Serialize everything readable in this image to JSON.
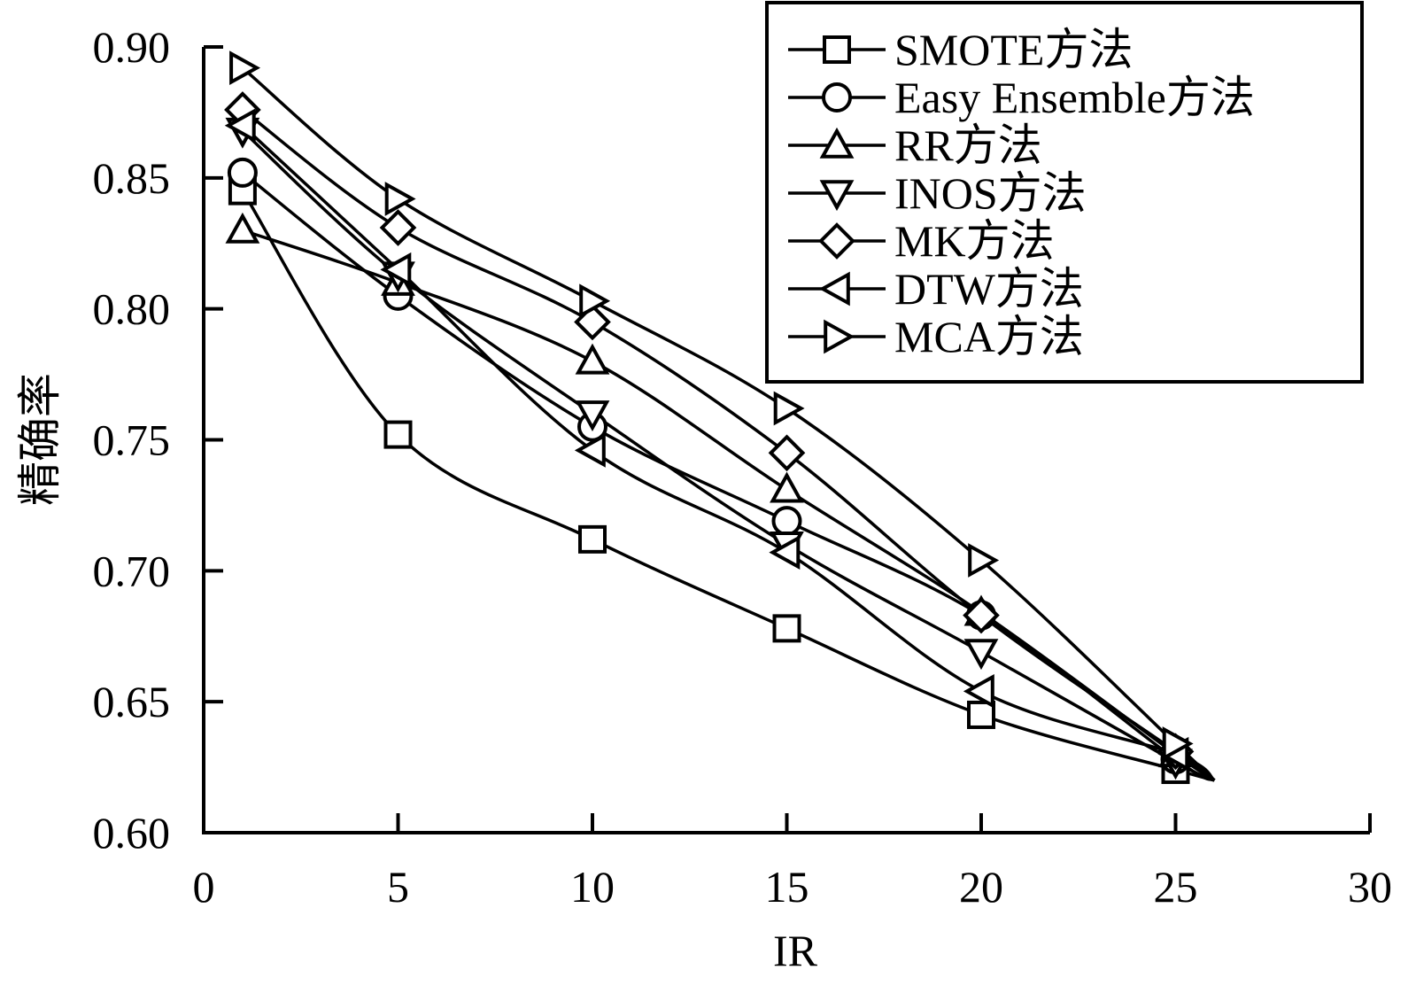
{
  "chart_data": {
    "type": "line",
    "title": "",
    "xlabel": "IR",
    "ylabel": "精确率",
    "xlim": [
      0,
      30
    ],
    "ylim": [
      0.6,
      0.9
    ],
    "xticks": [
      "0",
      "5",
      "10",
      "15",
      "20",
      "25",
      "30"
    ],
    "yticks": [
      "0.60",
      "0.65",
      "0.70",
      "0.75",
      "0.80",
      "0.85",
      "0.90"
    ],
    "grid": false,
    "legend_position": "top-right",
    "curve_end": {
      "x": 26.0,
      "y": 0.62
    },
    "series": [
      {
        "name": "SMOTE方法",
        "marker": "square",
        "x": [
          1,
          5,
          10,
          15,
          20,
          25
        ],
        "y": [
          0.845,
          0.752,
          0.712,
          0.678,
          0.645,
          0.624
        ]
      },
      {
        "name": "Easy Ensemble方法",
        "marker": "circle",
        "x": [
          1,
          5,
          10,
          15,
          20,
          25
        ],
        "y": [
          0.852,
          0.805,
          0.755,
          0.719,
          0.683,
          0.628
        ]
      },
      {
        "name": "RR方法",
        "marker": "triangle-up",
        "x": [
          1,
          5,
          10,
          15,
          20,
          25
        ],
        "y": [
          0.83,
          0.81,
          0.78,
          0.731,
          0.684,
          0.63
        ]
      },
      {
        "name": "INOS方法",
        "marker": "triangle-down",
        "x": [
          1,
          5,
          10,
          15,
          20,
          25
        ],
        "y": [
          0.868,
          0.813,
          0.76,
          0.71,
          0.669,
          0.627
        ]
      },
      {
        "name": "MK方法",
        "marker": "diamond",
        "x": [
          1,
          5,
          10,
          15,
          20,
          25
        ],
        "y": [
          0.876,
          0.831,
          0.795,
          0.745,
          0.683,
          0.631
        ]
      },
      {
        "name": "DTW方法",
        "marker": "triangle-left",
        "x": [
          1,
          5,
          10,
          15,
          20,
          25
        ],
        "y": [
          0.87,
          0.815,
          0.746,
          0.707,
          0.654,
          0.63
        ]
      },
      {
        "name": "MCA方法",
        "marker": "triangle-right",
        "x": [
          1,
          5,
          10,
          15,
          20,
          25
        ],
        "y": [
          0.892,
          0.842,
          0.803,
          0.762,
          0.704,
          0.634
        ]
      }
    ]
  }
}
